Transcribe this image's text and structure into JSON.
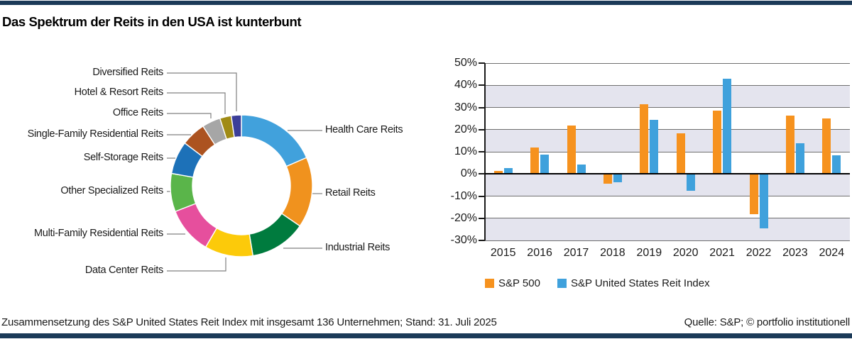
{
  "page": {
    "title": "Das Spektrum der Reits in den USA ist kunterbunt",
    "footer_left": "Zusammensetzung des S&P United States Reit Index mit insgesamt 136 Unternehmen; Stand: 31. Juli 2025",
    "footer_right": "Quelle: S&P; © portfolio institutionell",
    "accent_color": "#1b3a58"
  },
  "chart_data": [
    {
      "type": "pie",
      "variant": "donut",
      "unit": "share of S&P United States Reit Index, visual estimate in %",
      "segments": [
        {
          "label": "Health Care Reits",
          "value": 18.5,
          "color": "#41a1dc"
        },
        {
          "label": "Retail Reits",
          "value": 16.1,
          "color": "#f0921e"
        },
        {
          "label": "Industrial Reits",
          "value": 12.8,
          "color": "#007b3e"
        },
        {
          "label": "Data Center Reits",
          "value": 11.0,
          "color": "#fcca0a"
        },
        {
          "label": "Multi-Family Residential Reits",
          "value": 10.7,
          "color": "#e64f9d"
        },
        {
          "label": "Other Specialized Reits",
          "value": 8.7,
          "color": "#5ab54a"
        },
        {
          "label": "Self-Storage Reits",
          "value": 7.5,
          "color": "#1d71b8"
        },
        {
          "label": "Single-Family Residential Reits",
          "value": 5.6,
          "color": "#ac5320"
        },
        {
          "label": "Office Reits",
          "value": 4.2,
          "color": "#a6a6a6"
        },
        {
          "label": "Hotel & Resort Reits",
          "value": 2.6,
          "color": "#a08b15"
        },
        {
          "label": "Diversified Reits",
          "value": 2.3,
          "color": "#3c3f99"
        }
      ]
    },
    {
      "type": "bar",
      "categories": [
        "2015",
        "2016",
        "2017",
        "2018",
        "2019",
        "2020",
        "2021",
        "2022",
        "2023",
        "2024"
      ],
      "series": [
        {
          "name": "S&P 500",
          "color": "#f6921e",
          "values": [
            1.4,
            12.0,
            21.8,
            -4.4,
            31.5,
            18.4,
            28.7,
            -18.1,
            26.3,
            25.0
          ]
        },
        {
          "name": "S&P United States Reit Index",
          "color": "#3fa1dc",
          "values": [
            2.5,
            8.6,
            4.3,
            -3.8,
            24.5,
            -7.5,
            43.1,
            -24.4,
            13.7,
            8.5
          ]
        }
      ],
      "ylim": [
        -30,
        50
      ],
      "ytick_step": 10,
      "yticks": [
        "50%",
        "40%",
        "30%",
        "20%",
        "10%",
        "0%",
        "-10%",
        "-20%",
        "-30%"
      ],
      "grid": true,
      "band_color": "#e4e4ee",
      "legend_position": "bottom"
    }
  ]
}
